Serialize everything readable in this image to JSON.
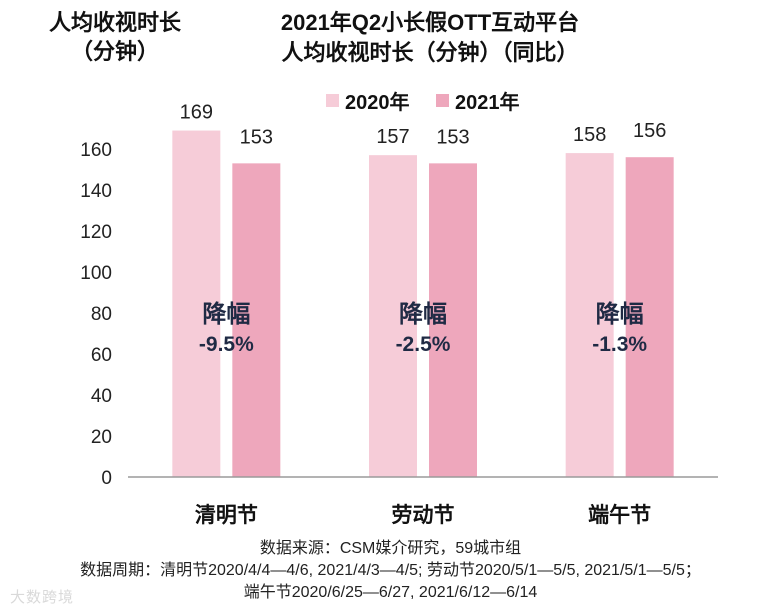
{
  "y_axis_label_lines": [
    "人均收视时长",
    "（分钟）"
  ],
  "title_lines": [
    "2021年Q2小长假OTT互动平台",
    "人均收视时长（分钟）（同比）"
  ],
  "colors": {
    "series_2020": "#F6CCD8",
    "series_2021": "#EEA7BC",
    "axis": "#9A9A9A",
    "text": "#222222"
  },
  "chart_data": {
    "type": "bar",
    "categories": [
      "清明节",
      "劳动节",
      "端午节"
    ],
    "series": [
      {
        "name": "2020年",
        "values": [
          169,
          157,
          158
        ]
      },
      {
        "name": "2021年",
        "values": [
          153,
          153,
          156
        ]
      }
    ],
    "ylim": [
      0,
      170
    ],
    "yticks": [
      0,
      20,
      40,
      60,
      80,
      100,
      120,
      140,
      160
    ],
    "annotations": [
      {
        "label": "降幅",
        "value": "-9.5%"
      },
      {
        "label": "降幅",
        "value": "-2.5%"
      },
      {
        "label": "降幅",
        "value": "-1.3%"
      }
    ],
    "grid": false,
    "legend": "top-center"
  },
  "source_lines": [
    "数据来源：CSM媒介研究，59城市组",
    "数据周期：清明节2020/4/4—4/6, 2021/4/3—4/5; 劳动节2020/5/1—5/5, 2021/5/1—5/5；",
    "端午节2020/6/25—6/27, 2021/6/12—6/14"
  ],
  "watermark": "大数跨境"
}
